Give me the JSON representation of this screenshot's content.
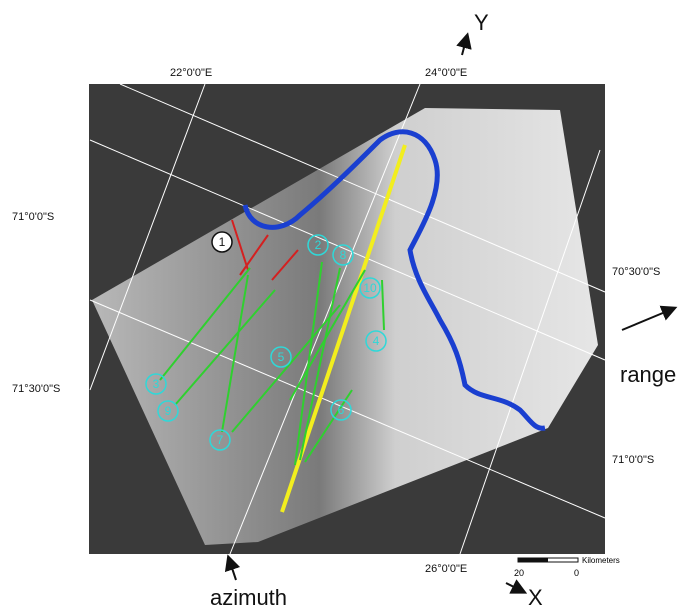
{
  "axes": {
    "y_label": "Y",
    "x_label": "X",
    "range_label": "range",
    "azimuth_label": "azimuth"
  },
  "graticule": {
    "longitudes": [
      "22°0'0\"E",
      "24°0'0\"E",
      "26°0'0\"E"
    ],
    "latitudes_left": [
      "71°0'0\"S",
      "71°30'0\"S"
    ],
    "latitudes_right": [
      "70°30'0\"S",
      "71°0'0\"S"
    ]
  },
  "scale_bar": {
    "unit": "Kilometers",
    "labels": [
      "20",
      "0"
    ]
  },
  "profiles": [
    {
      "label": "1"
    },
    {
      "label": "2"
    },
    {
      "label": "3"
    },
    {
      "label": "4"
    },
    {
      "label": "5"
    },
    {
      "label": "6"
    },
    {
      "label": "7"
    },
    {
      "label": "8"
    },
    {
      "label": "9"
    },
    {
      "label": "10"
    }
  ]
}
